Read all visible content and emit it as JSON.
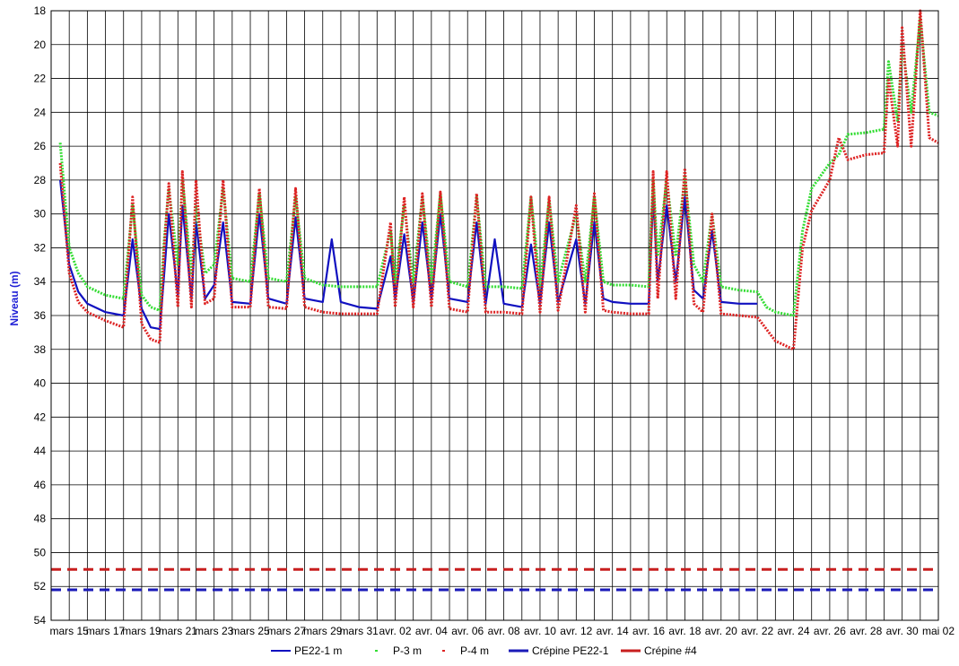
{
  "chart_data": {
    "type": "line",
    "title": "",
    "xlabel": "",
    "ylabel": "Niveau (m)",
    "y_inverted": true,
    "ylim": [
      18,
      54
    ],
    "yticks": [
      18,
      20,
      22,
      24,
      26,
      28,
      30,
      32,
      34,
      36,
      38,
      40,
      42,
      44,
      46,
      48,
      50,
      52,
      54
    ],
    "x_tick_labels": [
      "mars 15",
      "mars 17",
      "mars 19",
      "mars 21",
      "mars 23",
      "mars 25",
      "mars 27",
      "mars 29",
      "mars 31",
      "avr. 02",
      "avr. 04",
      "avr. 06",
      "avr. 08",
      "avr. 10",
      "avr. 12",
      "avr. 14",
      "avr. 16",
      "avr. 18",
      "avr. 20",
      "avr. 22",
      "avr. 24",
      "avr. 26",
      "avr. 28",
      "avr. 30",
      "mai 02"
    ],
    "grid": true,
    "legend_position": "bottom",
    "series": [
      {
        "name": "PE22-1 m",
        "color": "#1010c0",
        "style": "line",
        "points": [
          [
            "mars 14 12h",
            28.0
          ],
          [
            "mars 15",
            33.0
          ],
          [
            "mars 15 12h",
            34.6
          ],
          [
            "mars 16",
            35.3
          ],
          [
            "mars 17",
            35.8
          ],
          [
            "mars 18",
            36.0
          ],
          [
            "mars 18 12h",
            31.5
          ],
          [
            "mars 19",
            35.6
          ],
          [
            "mars 19 12h",
            36.7
          ],
          [
            "mars 20",
            36.8
          ],
          [
            "mars 20 6h",
            33.5
          ],
          [
            "mars 20 12h",
            30.0
          ],
          [
            "mars 21",
            34.8
          ],
          [
            "mars 21 6h",
            29.5
          ],
          [
            "mars 21 18h",
            35.0
          ],
          [
            "mars 22",
            30.5
          ],
          [
            "mars 22 12h",
            35.0
          ],
          [
            "mars 23",
            34.2
          ],
          [
            "mars 23 12h",
            30.5
          ],
          [
            "mars 24",
            35.2
          ],
          [
            "mars 25",
            35.3
          ],
          [
            "mars 25 12h",
            30.0
          ],
          [
            "mars 26",
            35.0
          ],
          [
            "mars 27",
            35.3
          ],
          [
            "mars 27 12h",
            30.2
          ],
          [
            "mars 28",
            35.0
          ],
          [
            "mars 29",
            35.2
          ],
          [
            "mars 29 12h",
            31.5
          ],
          [
            "mars 30",
            35.2
          ],
          [
            "mars 31",
            35.5
          ],
          [
            "avr. 01",
            35.6
          ],
          [
            "avr. 01 18h",
            32.5
          ],
          [
            "avr. 02",
            35.0
          ],
          [
            "avr. 02 12h",
            31.2
          ],
          [
            "avr. 03",
            35.2
          ],
          [
            "avr. 03 12h",
            30.5
          ],
          [
            "avr. 04",
            35.0
          ],
          [
            "avr. 04 12h",
            30.0
          ],
          [
            "avr. 05",
            35.0
          ],
          [
            "avr. 06",
            35.2
          ],
          [
            "avr. 06 12h",
            30.5
          ],
          [
            "avr. 07",
            35.3
          ],
          [
            "avr. 07 12h",
            31.5
          ],
          [
            "avr. 08",
            35.3
          ],
          [
            "avr. 09",
            35.5
          ],
          [
            "avr. 09 12h",
            31.8
          ],
          [
            "avr. 10",
            35.3
          ],
          [
            "avr. 10 12h",
            30.5
          ],
          [
            "avr. 11",
            35.2
          ],
          [
            "avr. 12",
            31.5
          ],
          [
            "avr. 12 12h",
            35.3
          ],
          [
            "avr. 13",
            30.5
          ],
          [
            "avr. 13 12h",
            35.0
          ],
          [
            "avr. 14",
            35.2
          ],
          [
            "avr. 15",
            35.3
          ],
          [
            "avr. 16",
            35.3
          ],
          [
            "avr. 16 6h",
            29.0
          ],
          [
            "avr. 16 12h",
            34.0
          ],
          [
            "avr. 17",
            29.5
          ],
          [
            "avr. 17 12h",
            34.0
          ],
          [
            "avr. 18",
            29.0
          ],
          [
            "avr. 18 12h",
            34.5
          ],
          [
            "avr. 19",
            35.0
          ],
          [
            "avr. 19 12h",
            31.0
          ],
          [
            "avr. 20",
            35.2
          ],
          [
            "avr. 21",
            35.3
          ],
          [
            "avr. 22",
            35.3
          ]
        ]
      },
      {
        "name": "P-3 m",
        "color": "#33dd33",
        "style": "dashed",
        "points": [
          [
            "mars 14 12h",
            25.8
          ],
          [
            "mars 15",
            32.0
          ],
          [
            "mars 15 12h",
            33.5
          ],
          [
            "mars 16",
            34.3
          ],
          [
            "mars 17",
            34.8
          ],
          [
            "mars 18",
            35.0
          ],
          [
            "mars 18 12h",
            29.5
          ],
          [
            "mars 19",
            34.8
          ],
          [
            "mars 19 12h",
            35.5
          ],
          [
            "mars 20",
            35.7
          ],
          [
            "mars 20 6h",
            31.5
          ],
          [
            "mars 20 12h",
            28.5
          ],
          [
            "mars 21",
            33.0
          ],
          [
            "mars 21 6h",
            28.0
          ],
          [
            "mars 21 18h",
            33.5
          ],
          [
            "mars 22",
            29.5
          ],
          [
            "mars 22 12h",
            33.5
          ],
          [
            "mars 23",
            33.0
          ],
          [
            "mars 23 12h",
            28.5
          ],
          [
            "mars 24",
            33.8
          ],
          [
            "mars 25",
            34.0
          ],
          [
            "mars 25 12h",
            28.8
          ],
          [
            "mars 26",
            33.8
          ],
          [
            "mars 27",
            34.0
          ],
          [
            "mars 27 12h",
            29.0
          ],
          [
            "mars 28",
            33.8
          ],
          [
            "mars 29",
            34.2
          ],
          [
            "mars 30",
            34.3
          ],
          [
            "mars 31",
            34.3
          ],
          [
            "avr. 01",
            34.3
          ],
          [
            "avr. 01 18h",
            31.0
          ],
          [
            "avr. 02",
            34.0
          ],
          [
            "avr. 02 12h",
            29.5
          ],
          [
            "avr. 03",
            34.0
          ],
          [
            "avr. 03 12h",
            29.0
          ],
          [
            "avr. 04",
            34.0
          ],
          [
            "avr. 04 12h",
            28.8
          ],
          [
            "avr. 05",
            34.0
          ],
          [
            "avr. 06",
            34.3
          ],
          [
            "avr. 06 12h",
            29.0
          ],
          [
            "avr. 07",
            34.3
          ],
          [
            "avr. 08",
            34.3
          ],
          [
            "avr. 09",
            34.4
          ],
          [
            "avr. 09 12h",
            29.0
          ],
          [
            "avr. 10",
            34.2
          ],
          [
            "avr. 10 12h",
            29.2
          ],
          [
            "avr. 11",
            34.0
          ],
          [
            "avr. 12",
            30.0
          ],
          [
            "avr. 12 12h",
            34.0
          ],
          [
            "avr. 13",
            29.0
          ],
          [
            "avr. 13 12h",
            34.0
          ],
          [
            "avr. 14",
            34.2
          ],
          [
            "avr. 15",
            34.2
          ],
          [
            "avr. 16",
            34.3
          ],
          [
            "avr. 16 6h",
            28.0
          ],
          [
            "avr. 16 12h",
            32.5
          ],
          [
            "avr. 17",
            28.0
          ],
          [
            "avr. 17 12h",
            32.5
          ],
          [
            "avr. 18",
            27.8
          ],
          [
            "avr. 18 12h",
            33.0
          ],
          [
            "avr. 19",
            34.0
          ],
          [
            "avr. 19 12h",
            30.0
          ],
          [
            "avr. 20",
            34.3
          ],
          [
            "avr. 21",
            34.5
          ],
          [
            "avr. 22",
            34.6
          ],
          [
            "avr. 22 12h",
            35.5
          ],
          [
            "avr. 23",
            35.8
          ],
          [
            "avr. 24",
            36.0
          ],
          [
            "avr. 24 12h",
            31.0
          ],
          [
            "avr. 25",
            28.5
          ],
          [
            "avr. 26",
            27.0
          ],
          [
            "avr. 26 12h",
            26.5
          ],
          [
            "avr. 27",
            25.3
          ],
          [
            "avr. 28",
            25.2
          ],
          [
            "avr. 29",
            25.0
          ],
          [
            "avr. 29 6h",
            21.0
          ],
          [
            "avr. 29 18h",
            24.5
          ],
          [
            "avr. 30",
            20.0
          ],
          [
            "avr. 30 12h",
            24.0
          ],
          [
            "mai 01",
            18.5
          ],
          [
            "mai 01 12h",
            24.0
          ],
          [
            "mai 02",
            24.2
          ]
        ]
      },
      {
        "name": "P-4 m",
        "color": "#dd2222",
        "style": "dashed",
        "points": [
          [
            "mars 14 12h",
            27.0
          ],
          [
            "mars 15",
            33.5
          ],
          [
            "mars 15 12h",
            35.2
          ],
          [
            "mars 16",
            35.8
          ],
          [
            "mars 17",
            36.3
          ],
          [
            "mars 18",
            36.7
          ],
          [
            "mars 18 12h",
            29.0
          ],
          [
            "mars 19",
            36.5
          ],
          [
            "mars 19 12h",
            37.4
          ],
          [
            "mars 20",
            37.6
          ],
          [
            "mars 20 6h",
            32.0
          ],
          [
            "mars 20 12h",
            28.2
          ],
          [
            "mars 21",
            35.5
          ],
          [
            "mars 21 6h",
            27.5
          ],
          [
            "mars 21 18h",
            35.5
          ],
          [
            "mars 22",
            28.0
          ],
          [
            "mars 22 12h",
            35.3
          ],
          [
            "mars 23",
            35.0
          ],
          [
            "mars 23 12h",
            28.0
          ],
          [
            "mars 24",
            35.5
          ],
          [
            "mars 25",
            35.5
          ],
          [
            "mars 25 12h",
            28.5
          ],
          [
            "mars 26",
            35.5
          ],
          [
            "mars 27",
            35.6
          ],
          [
            "mars 27 12h",
            28.5
          ],
          [
            "mars 28",
            35.5
          ],
          [
            "mars 29",
            35.8
          ],
          [
            "mars 30",
            35.9
          ],
          [
            "mars 31",
            35.9
          ],
          [
            "avr. 01",
            35.9
          ],
          [
            "avr. 01 18h",
            30.5
          ],
          [
            "avr. 02",
            35.5
          ],
          [
            "avr. 02 12h",
            29.0
          ],
          [
            "avr. 03",
            35.5
          ],
          [
            "avr. 03 12h",
            28.8
          ],
          [
            "avr. 04",
            35.5
          ],
          [
            "avr. 04 12h",
            28.7
          ],
          [
            "avr. 05",
            35.6
          ],
          [
            "avr. 06",
            35.8
          ],
          [
            "avr. 06 12h",
            28.8
          ],
          [
            "avr. 07",
            35.8
          ],
          [
            "avr. 08",
            35.8
          ],
          [
            "avr. 09",
            35.9
          ],
          [
            "avr. 09 12h",
            29.0
          ],
          [
            "avr. 10",
            35.8
          ],
          [
            "avr. 10 12h",
            29.0
          ],
          [
            "avr. 11",
            35.7
          ],
          [
            "avr. 12",
            29.5
          ],
          [
            "avr. 12 12h",
            35.8
          ],
          [
            "avr. 13",
            28.8
          ],
          [
            "avr. 13 12h",
            35.7
          ],
          [
            "avr. 14",
            35.8
          ],
          [
            "avr. 15",
            35.9
          ],
          [
            "avr. 16",
            35.9
          ],
          [
            "avr. 16 6h",
            27.5
          ],
          [
            "avr. 16 12h",
            35.0
          ],
          [
            "avr. 17",
            27.5
          ],
          [
            "avr. 17 12h",
            35.0
          ],
          [
            "avr. 18",
            27.3
          ],
          [
            "avr. 18 12h",
            35.3
          ],
          [
            "avr. 19",
            35.8
          ],
          [
            "avr. 19 12h",
            30.0
          ],
          [
            "avr. 20",
            35.9
          ],
          [
            "avr. 21",
            36.0
          ],
          [
            "avr. 22",
            36.1
          ],
          [
            "avr. 23",
            37.5
          ],
          [
            "avr. 24",
            38.0
          ],
          [
            "avr. 24 12h",
            32.0
          ],
          [
            "avr. 25",
            29.8
          ],
          [
            "avr. 26",
            28.0
          ],
          [
            "avr. 26 12h",
            25.5
          ],
          [
            "avr. 27",
            26.8
          ],
          [
            "avr. 28",
            26.5
          ],
          [
            "avr. 29",
            26.4
          ],
          [
            "avr. 29 6h",
            22.0
          ],
          [
            "avr. 29 18h",
            26.0
          ],
          [
            "avr. 30",
            19.0
          ],
          [
            "avr. 30 12h",
            26.0
          ],
          [
            "mai 01",
            18.0
          ],
          [
            "mai 01 12h",
            25.5
          ],
          [
            "mai 02",
            25.8
          ]
        ]
      },
      {
        "name": "Crépine PE22-1",
        "color": "#1a1ab8",
        "style": "dashed-thick",
        "points": [
          [
            "mars 14",
            52.2
          ],
          [
            "mai 02",
            52.2
          ]
        ]
      },
      {
        "name": "Crépine #4",
        "color": "#c81e1e",
        "style": "dashed-thick",
        "points": [
          [
            "mars 14",
            51.0
          ],
          [
            "mai 02",
            51.0
          ]
        ]
      }
    ]
  }
}
